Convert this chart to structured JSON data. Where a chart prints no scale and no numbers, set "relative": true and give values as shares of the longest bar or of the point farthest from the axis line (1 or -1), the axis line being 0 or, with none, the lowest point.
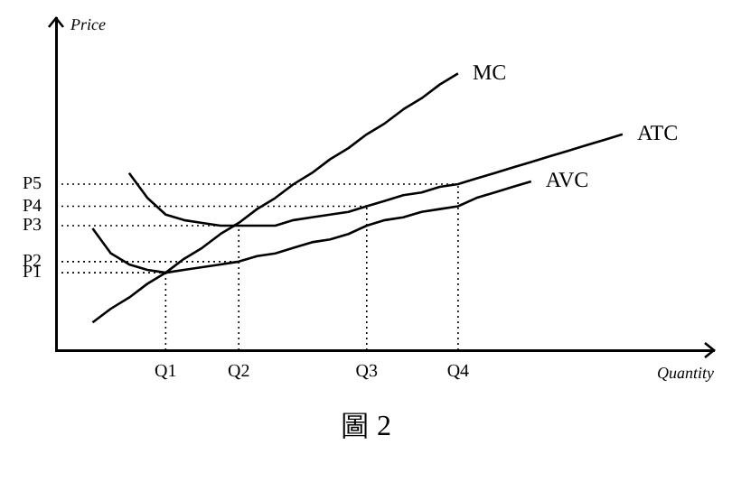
{
  "chart_data": {
    "type": "line",
    "relative": true,
    "xlabel": "Quantity",
    "ylabel": "Price",
    "annotations": [
      "圖 2"
    ],
    "categories": [
      null,
      null,
      null,
      null,
      null,
      null,
      "Q1",
      null,
      null,
      null,
      "Q2",
      null,
      null,
      null,
      null,
      null,
      null,
      "Q3",
      null,
      null,
      null,
      null,
      "Q4",
      null,
      null,
      null,
      null,
      null,
      null,
      null,
      null,
      null,
      null,
      null,
      null,
      null,
      null
    ],
    "grid": false,
    "legend": false,
    "marker": "none",
    "line_style": "solid",
    "series": [
      {
        "name": "MC",
        "color": "#000000",
        "values": [
          null,
          null,
          0.1,
          0.15,
          0.19,
          0.24,
          0.28,
          0.33,
          0.37,
          0.42,
          0.46,
          0.51,
          0.55,
          0.6,
          0.64,
          0.69,
          0.73,
          0.78,
          0.82,
          0.87,
          0.91,
          0.96,
          1,
          null,
          null,
          null,
          null,
          null,
          null,
          null,
          null,
          null,
          null,
          null,
          null,
          null,
          null
        ]
      },
      {
        "name": "ATC",
        "color": "#000000",
        "values": [
          null,
          null,
          null,
          null,
          0.64,
          0.55,
          0.49,
          0.47,
          0.46,
          0.45,
          0.45,
          0.45,
          0.45,
          0.47,
          0.48,
          0.49,
          0.5,
          0.52,
          0.54,
          0.56,
          0.57,
          0.59,
          0.6,
          0.62,
          0.64,
          0.66,
          0.68,
          0.7,
          0.72,
          0.74,
          0.76,
          0.78,
          null,
          null,
          null,
          null,
          null
        ]
      },
      {
        "name": "AVC",
        "color": "#000000",
        "values": [
          null,
          null,
          0.44,
          0.35,
          0.31,
          0.29,
          0.28,
          0.29,
          0.3,
          0.31,
          0.32,
          0.34,
          0.35,
          0.37,
          0.39,
          0.4,
          0.42,
          0.45,
          0.47,
          0.48,
          0.5,
          0.51,
          0.52,
          0.55,
          0.57,
          0.59,
          0.61,
          null,
          null,
          null,
          null,
          null,
          null,
          null,
          null,
          null,
          null
        ]
      }
    ],
    "ref_lines": [
      {
        "axis": "y",
        "value": 0.28,
        "label": "P1",
        "color": "#000000",
        "line_style": "dotted"
      },
      {
        "axis": "y",
        "value": 0.32,
        "label": "P2",
        "color": "#000000",
        "line_style": "dotted"
      },
      {
        "axis": "y",
        "value": 0.45,
        "label": "P3",
        "color": "#000000",
        "line_style": "dotted"
      },
      {
        "axis": "y",
        "value": 0.52,
        "label": "P4",
        "color": "#000000",
        "line_style": "dotted"
      },
      {
        "axis": "y",
        "value": 0.6,
        "label": "P5",
        "color": "#000000",
        "line_style": "dotted"
      },
      {
        "axis": "x",
        "value": "Q1",
        "color": "#000000",
        "line_style": "dotted"
      },
      {
        "axis": "x",
        "value": "Q2",
        "color": "#000000",
        "line_style": "dotted"
      },
      {
        "axis": "x",
        "value": "Q3",
        "color": "#000000",
        "line_style": "dotted"
      },
      {
        "axis": "x",
        "value": "Q4",
        "color": "#000000",
        "line_style": "dotted"
      }
    ]
  }
}
